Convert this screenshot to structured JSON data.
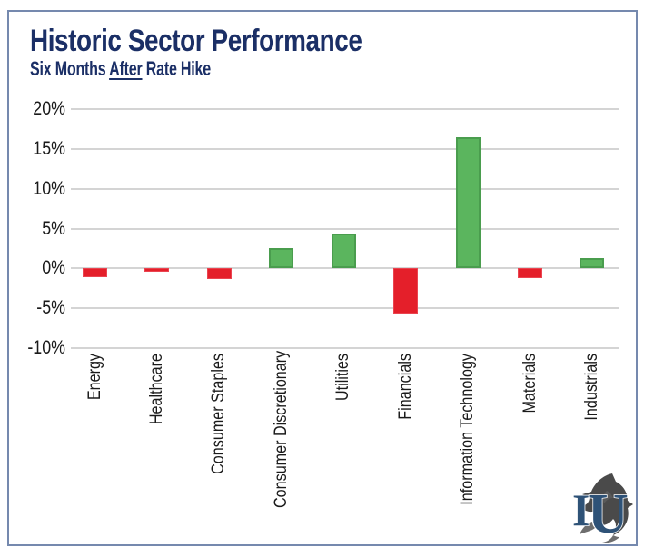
{
  "header": {
    "title": "Historic Sector Performance",
    "subtitle": {
      "prefix": "Six Months ",
      "underlined": "After",
      "suffix": " Rate Hike"
    }
  },
  "chart_data": {
    "type": "bar",
    "title": "Historic Sector Performance",
    "subtitle": "Six Months After Rate Hike",
    "categories": [
      "Energy",
      "Healthcare",
      "Consumer Staples",
      "Consumer Discretionary",
      "Utilities",
      "Financials",
      "Information Technology",
      "Materials",
      "Industrials"
    ],
    "values": [
      -1.1,
      -0.4,
      -1.3,
      2.6,
      4.4,
      -5.7,
      16.5,
      -1.2,
      1.3
    ],
    "unit": "%",
    "xlabel": "",
    "ylabel": "",
    "ylim": [
      -10,
      20
    ],
    "ytick_step": 5,
    "ytick_labels": [
      "20%",
      "15%",
      "10%",
      "5%",
      "0%",
      "-5%",
      "-10%"
    ],
    "grid": true,
    "legend_position": "none",
    "positive_color": "#5bb55e",
    "negative_color": "#e41f2a"
  },
  "logo": {
    "monogram": "IU",
    "letter_i": "I",
    "letter_u": "U"
  },
  "colors": {
    "title_navy": "#1b2f66",
    "frame_border": "#7589ae",
    "gridline": "#d4d4d4",
    "axis_text": "#1a1a1a",
    "bar_positive": "#5bb55e",
    "bar_positive_border": "#4a9d4e",
    "bar_negative": "#e41f2a",
    "logo_blue": "#2e5277",
    "logo_gray": "#4a4a4a"
  }
}
